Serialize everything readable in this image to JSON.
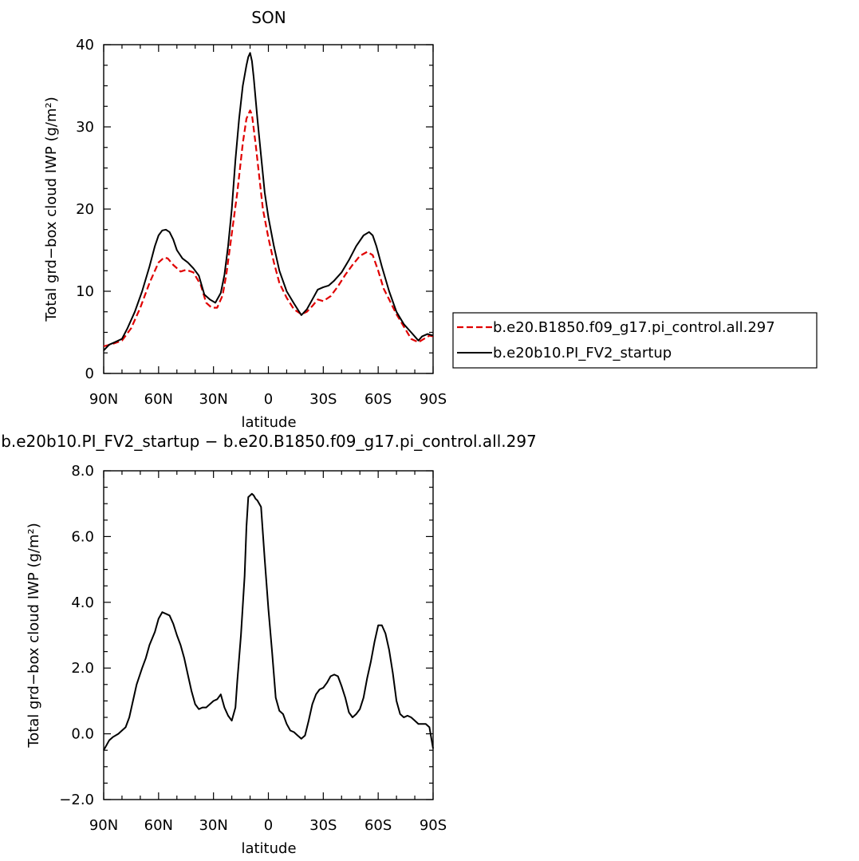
{
  "chart_data": [
    {
      "type": "line",
      "title": "SON",
      "xlabel": "latitude",
      "ylabel": "Total grd−box cloud IWP (g/m²)",
      "xlim": [
        90,
        -90
      ],
      "ylim": [
        0,
        40
      ],
      "xticks": [
        90,
        60,
        30,
        0,
        -30,
        -60,
        -90
      ],
      "xtick_labels": [
        "90N",
        "60N",
        "30N",
        "0",
        "30S",
        "60S",
        "90S"
      ],
      "yticks": [
        0,
        10,
        20,
        30,
        40
      ],
      "ytick_labels": [
        "0",
        "10",
        "20",
        "30",
        "40"
      ],
      "legend_position": "right",
      "series": [
        {
          "name": "b.e20.B1850.f09_g17.pi_control.all.297",
          "color": "#e00000",
          "dash": true,
          "x": [
            90,
            85,
            80,
            75,
            70,
            65,
            60,
            57,
            55,
            52,
            48,
            45,
            41,
            37,
            34,
            31,
            28,
            25,
            23,
            20,
            17,
            14,
            12,
            10,
            9,
            7,
            5,
            3,
            0,
            -3,
            -6,
            -10,
            -14,
            -18,
            -21,
            -24,
            -27,
            -30,
            -34,
            -38,
            -42,
            -46,
            -50,
            -54,
            -57,
            -60,
            -63,
            -66,
            -70,
            -74,
            -78,
            -82,
            -85,
            -88,
            -90
          ],
          "y": [
            3.3,
            3.6,
            4.0,
            5.5,
            8.0,
            11.0,
            13.5,
            14.1,
            14.0,
            13.2,
            12.4,
            12.6,
            12.3,
            10.8,
            8.6,
            8.0,
            8.0,
            9.5,
            12.0,
            17.0,
            22.0,
            28.0,
            31.0,
            32.0,
            31.5,
            28.0,
            24.0,
            20.0,
            16.5,
            13.5,
            11.0,
            9.2,
            7.8,
            7.2,
            7.5,
            8.2,
            9.0,
            8.8,
            9.4,
            10.6,
            12.0,
            13.2,
            14.3,
            14.8,
            14.4,
            12.5,
            10.3,
            9.0,
            7.2,
            5.7,
            4.2,
            3.8,
            4.2,
            4.6,
            4.5
          ]
        },
        {
          "name": "b.e20b10.PI_FV2_startup",
          "color": "#000000",
          "dash": false,
          "x": [
            90,
            87,
            84,
            80,
            77,
            73,
            69,
            65,
            62,
            60,
            58,
            56,
            54,
            52,
            50,
            47,
            44,
            41,
            38,
            35,
            32,
            29,
            26,
            24,
            22,
            20,
            18,
            16,
            14,
            12,
            11,
            10,
            9,
            8,
            6,
            4,
            2,
            0,
            -3,
            -6,
            -10,
            -14,
            -18,
            -21,
            -24,
            -27,
            -30,
            -33,
            -36,
            -40,
            -44,
            -48,
            -52,
            -55,
            -57,
            -59,
            -62,
            -66,
            -70,
            -74,
            -78,
            -82,
            -84,
            -87,
            -90
          ],
          "y": [
            2.8,
            3.5,
            3.8,
            4.2,
            5.5,
            7.5,
            10.0,
            13.0,
            15.5,
            16.8,
            17.4,
            17.5,
            17.2,
            16.3,
            15.0,
            14.0,
            13.5,
            12.8,
            11.9,
            9.6,
            9.0,
            8.6,
            9.8,
            12.0,
            15.5,
            20.0,
            26.0,
            31.0,
            35.0,
            37.5,
            38.5,
            39.0,
            38.0,
            36.0,
            31.0,
            26.5,
            22.0,
            19.0,
            15.5,
            12.5,
            10.0,
            8.5,
            7.1,
            7.8,
            9.0,
            10.2,
            10.5,
            10.7,
            11.3,
            12.3,
            13.8,
            15.5,
            16.8,
            17.2,
            16.8,
            15.5,
            13.0,
            10.0,
            7.5,
            6.0,
            5.0,
            4.0,
            4.5,
            4.8,
            4.6
          ]
        }
      ]
    },
    {
      "type": "line",
      "title": "b.e20b10.PI_FV2_startup − b.e20.B1850.f09_g17.pi_control.all.297",
      "xlabel": "latitude",
      "ylabel": "Total grd−box cloud IWP (g/m²)",
      "xlim": [
        90,
        -90
      ],
      "ylim": [
        -2.0,
        8.0
      ],
      "xticks": [
        90,
        60,
        30,
        0,
        -30,
        -60,
        -90
      ],
      "xtick_labels": [
        "90N",
        "60N",
        "30N",
        "0",
        "30S",
        "60S",
        "90S"
      ],
      "yticks": [
        -2.0,
        0.0,
        2.0,
        4.0,
        6.0,
        8.0
      ],
      "ytick_labels": [
        "−2.0",
        "0.0",
        "2.0",
        "4.0",
        "6.0",
        "8.0"
      ],
      "series": [
        {
          "color": "#000000",
          "dash": false,
          "x": [
            90,
            87,
            85,
            82,
            80,
            78,
            76,
            74,
            72,
            69,
            67,
            65,
            62,
            60,
            58,
            56,
            54,
            52,
            50,
            48,
            46,
            44,
            42,
            40,
            38,
            36,
            34,
            32,
            30,
            28,
            26,
            24,
            22,
            20,
            18,
            17,
            15,
            13,
            12,
            11,
            10,
            9,
            8,
            7,
            6,
            4,
            2,
            0,
            -2,
            -4,
            -6,
            -8,
            -10,
            -12,
            -14,
            -16,
            -18,
            -20,
            -22,
            -24,
            -26,
            -28,
            -30,
            -32,
            -34,
            -36,
            -38,
            -40,
            -42,
            -44,
            -46,
            -48,
            -50,
            -52,
            -54,
            -56,
            -58,
            -60,
            -62,
            -64,
            -66,
            -68,
            -70,
            -72,
            -74,
            -76,
            -78,
            -80,
            -82,
            -84,
            -86,
            -88,
            -90
          ],
          "y": [
            -0.5,
            -0.2,
            -0.1,
            0.0,
            0.1,
            0.2,
            0.5,
            1.0,
            1.5,
            2.0,
            2.3,
            2.7,
            3.1,
            3.5,
            3.7,
            3.65,
            3.6,
            3.35,
            3.0,
            2.7,
            2.3,
            1.8,
            1.3,
            0.9,
            0.75,
            0.8,
            0.8,
            0.9,
            1.0,
            1.05,
            1.2,
            0.8,
            0.55,
            0.4,
            0.8,
            1.6,
            3.0,
            4.8,
            6.3,
            7.2,
            7.25,
            7.3,
            7.25,
            7.15,
            7.1,
            6.9,
            5.3,
            3.8,
            2.5,
            1.1,
            0.7,
            0.6,
            0.3,
            0.1,
            0.05,
            -0.05,
            -0.15,
            -0.05,
            0.4,
            0.9,
            1.2,
            1.35,
            1.4,
            1.55,
            1.75,
            1.8,
            1.75,
            1.45,
            1.1,
            0.65,
            0.5,
            0.6,
            0.75,
            1.1,
            1.7,
            2.2,
            2.8,
            3.3,
            3.3,
            3.05,
            2.55,
            1.85,
            1.0,
            0.6,
            0.5,
            0.55,
            0.5,
            0.4,
            0.3,
            0.3,
            0.3,
            0.2,
            -0.45
          ]
        }
      ]
    }
  ]
}
